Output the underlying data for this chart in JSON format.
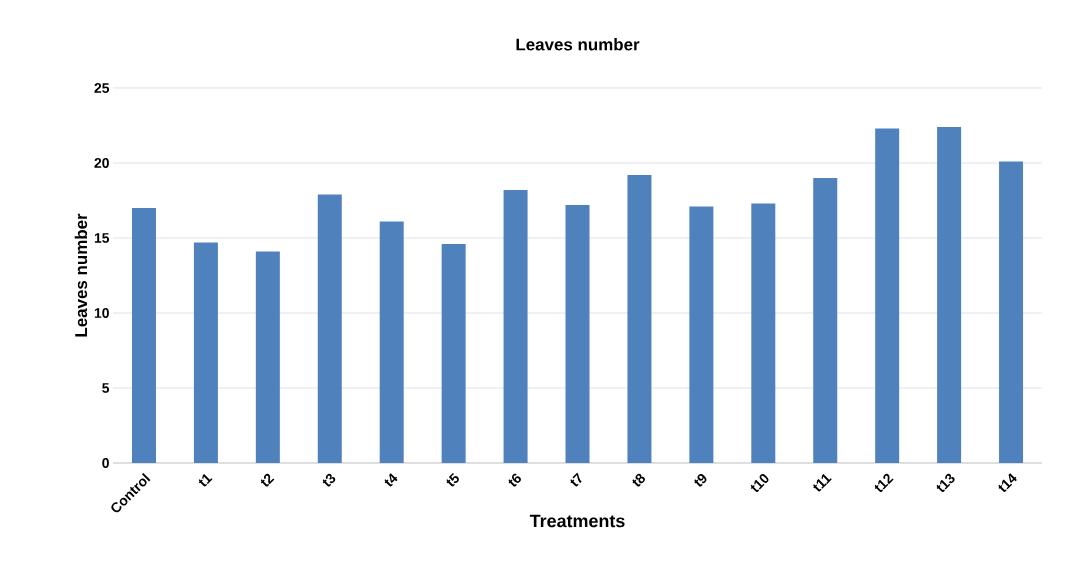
{
  "chart_data": {
    "type": "bar",
    "title": "Leaves number",
    "xlabel": "Treatments",
    "ylabel": "Leaves number",
    "categories": [
      "Control",
      "t1",
      "t2",
      "t3",
      "t4",
      "t5",
      "t6",
      "t7",
      "t8",
      "t9",
      "t10",
      "t11",
      "t12",
      "t13",
      "t14"
    ],
    "values": [
      17.0,
      14.7,
      14.1,
      17.9,
      16.1,
      14.6,
      18.2,
      17.2,
      19.2,
      17.1,
      17.3,
      19.0,
      22.3,
      22.4,
      20.1
    ],
    "color": "#4f81bd",
    "ylim": [
      0,
      25
    ],
    "yticks": [
      0,
      5,
      10,
      15,
      20,
      25
    ],
    "grid": "y"
  }
}
